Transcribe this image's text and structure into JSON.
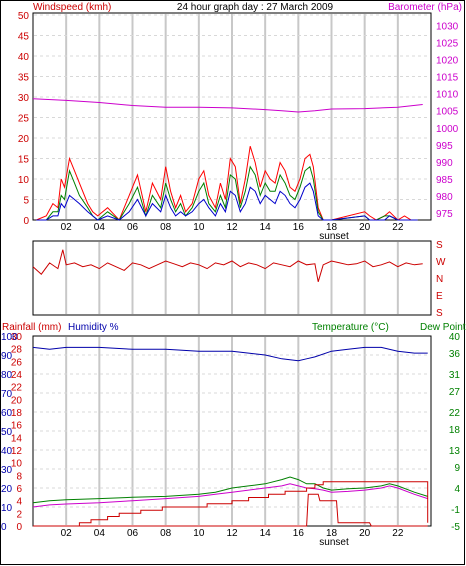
{
  "title": "24 hour graph day : 27 March 2009",
  "chart_data": [
    {
      "type": "line",
      "title": "24 hour graph day : 27 March 2009",
      "left_axis_label": "Windspeed (kmh)",
      "right_axis_label": "Barometer (hPa)",
      "left_ticks": [
        "0",
        "5",
        "10",
        "15",
        "20",
        "25",
        "30",
        "35",
        "40",
        "45",
        "50"
      ],
      "right_ticks": [
        "975",
        "980",
        "985",
        "990",
        "995",
        "1000",
        "1005",
        "1010",
        "1015",
        "1020",
        "1025",
        "1030"
      ],
      "x_ticks": [
        "02",
        "04",
        "06",
        "08",
        "10",
        "12",
        "14",
        "16",
        "18",
        "20",
        "22"
      ],
      "sunset_label": "sunset",
      "ylim_left": [
        0,
        50
      ],
      "ylim_right": [
        973,
        1033
      ],
      "xlim": [
        0,
        24
      ],
      "grid": true,
      "colors": {
        "barometer": "#cc00cc",
        "gust": "#ff0000",
        "average": "#008000",
        "speed": "#0000cc",
        "left_axis": "#cc0000",
        "right_axis": "#cc00cc"
      },
      "barometer": {
        "x": [
          0,
          2,
          4,
          6,
          8,
          10,
          12,
          14,
          15,
          16,
          17,
          18,
          20,
          22,
          23.5
        ],
        "y": [
          1008.5,
          1008,
          1007.4,
          1006.5,
          1006,
          1006,
          1005.8,
          1005.3,
          1005,
          1004.6,
          1005,
          1005.5,
          1005.6,
          1006,
          1006.8
        ]
      },
      "wind_gust": {
        "x": [
          0.2,
          0.8,
          1.2,
          1.5,
          1.7,
          1.9,
          2.2,
          2.5,
          2.8,
          3.3,
          3.6,
          3.9,
          4.5,
          5.2,
          5.8,
          6.3,
          6.8,
          7.2,
          7.7,
          8.0,
          8.3,
          8.6,
          8.9,
          9.2,
          9.6,
          10.0,
          10.3,
          10.6,
          11.0,
          11.3,
          11.6,
          11.9,
          12.2,
          12.5,
          12.8,
          13.1,
          13.4,
          13.7,
          14.0,
          14.3,
          14.6,
          14.9,
          15.2,
          15.5,
          15.8,
          16.1,
          16.4,
          16.7,
          16.9,
          17.2,
          17.5,
          18.0,
          20.0,
          20.3,
          20.7,
          21.2,
          21.5,
          22.0,
          22.4,
          22.8,
          23.2
        ],
        "y": [
          0,
          1,
          4,
          3,
          10,
          8,
          15,
          12,
          9,
          4,
          2,
          1,
          3,
          0,
          6,
          11,
          2,
          9,
          5,
          13,
          7,
          3,
          6,
          2,
          4,
          10,
          12,
          6,
          3,
          9,
          5,
          15,
          13,
          4,
          10,
          18,
          14,
          8,
          12,
          10,
          9,
          14,
          12,
          8,
          7,
          10,
          15,
          16,
          13,
          3,
          0,
          0,
          2,
          1,
          0,
          1,
          2,
          0,
          1,
          0,
          0
        ]
      },
      "wind_avg": {
        "x": [
          0.2,
          0.8,
          1.2,
          1.5,
          1.7,
          1.9,
          2.2,
          2.5,
          2.8,
          3.3,
          3.6,
          3.9,
          4.5,
          5.2,
          5.8,
          6.3,
          6.8,
          7.2,
          7.7,
          8.0,
          8.3,
          8.6,
          8.9,
          9.2,
          9.6,
          10.0,
          10.3,
          10.6,
          11.0,
          11.3,
          11.6,
          11.9,
          12.2,
          12.5,
          12.8,
          13.1,
          13.4,
          13.7,
          14.0,
          14.3,
          14.6,
          14.9,
          15.2,
          15.5,
          15.8,
          16.1,
          16.4,
          16.7,
          16.9,
          17.2,
          17.5,
          18.0,
          20.0,
          20.3,
          20.7,
          21.2,
          21.5,
          22.0,
          22.4,
          22.8,
          23.2
        ],
        "y": [
          0,
          0,
          2,
          2,
          6,
          5,
          12,
          9,
          6,
          3,
          1,
          0,
          2,
          0,
          4,
          8,
          1,
          6,
          3,
          9,
          5,
          2,
          4,
          1,
          3,
          7,
          9,
          4,
          2,
          6,
          3,
          11,
          10,
          3,
          7,
          13,
          11,
          6,
          9,
          7,
          7,
          11,
          9,
          6,
          5,
          8,
          12,
          13,
          10,
          2,
          0,
          0,
          1,
          0,
          0,
          1,
          1,
          0,
          0,
          0,
          0
        ]
      },
      "wind_speed": {
        "x": [
          0.2,
          0.8,
          1.2,
          1.5,
          1.7,
          1.9,
          2.2,
          2.5,
          2.8,
          3.3,
          3.6,
          3.9,
          4.5,
          5.2,
          5.8,
          6.3,
          6.8,
          7.2,
          7.7,
          8.0,
          8.3,
          8.6,
          8.9,
          9.2,
          9.6,
          10.0,
          10.3,
          10.6,
          11.0,
          11.3,
          11.6,
          11.9,
          12.2,
          12.5,
          12.8,
          13.1,
          13.4,
          13.7,
          14.0,
          14.3,
          14.6,
          14.9,
          15.2,
          15.5,
          15.8,
          16.1,
          16.4,
          16.7,
          16.9,
          17.2,
          17.5,
          18.0,
          20.0,
          20.3,
          20.7,
          21.2,
          21.5,
          22.0,
          22.4,
          22.8,
          23.2
        ],
        "y": [
          0,
          0,
          1,
          1,
          4,
          3,
          6,
          5,
          4,
          2,
          1,
          0,
          1,
          0,
          2,
          5,
          1,
          4,
          2,
          6,
          3,
          1,
          2,
          1,
          2,
          4,
          5,
          3,
          1,
          4,
          2,
          7,
          6,
          2,
          4,
          8,
          7,
          4,
          6,
          5,
          4,
          7,
          6,
          4,
          3,
          5,
          8,
          9,
          7,
          1,
          0,
          0,
          1,
          0,
          0,
          0,
          1,
          0,
          0,
          0,
          0
        ]
      }
    },
    {
      "type": "line",
      "right_axis_labels": [
        "S",
        "E",
        "N",
        "W",
        "S"
      ],
      "ylim": [
        0,
        360
      ],
      "xlim": [
        0,
        24
      ],
      "color": "#cc0000",
      "wind_direction": {
        "x": [
          0,
          0.5,
          1,
          1.5,
          1.8,
          2,
          2.5,
          3,
          3.5,
          4,
          4.5,
          5,
          5.5,
          6,
          6.5,
          7,
          7.5,
          8,
          8.5,
          9,
          9.5,
          10,
          10.5,
          11,
          11.5,
          12,
          12.5,
          13,
          13.5,
          14,
          14.5,
          15,
          15.5,
          16,
          16.5,
          17,
          17.2,
          17.5,
          18,
          18.5,
          19,
          19.5,
          20,
          20.5,
          21,
          21.5,
          22,
          22.5,
          23,
          23.5
        ],
        "y": [
          240,
          200,
          260,
          230,
          330,
          250,
          260,
          240,
          250,
          230,
          260,
          240,
          220,
          260,
          250,
          230,
          250,
          270,
          255,
          240,
          260,
          250,
          230,
          260,
          250,
          270,
          240,
          260,
          250,
          230,
          260,
          250,
          240,
          270,
          250,
          255,
          160,
          250,
          270,
          260,
          250,
          255,
          270,
          240,
          250,
          265,
          240,
          260,
          250,
          255
        ]
      }
    },
    {
      "type": "line",
      "left_axis_labels": [
        "Rainfall (mm)",
        "Humidity %"
      ],
      "right_axis_labels": [
        "Temperature (°C)",
        "Dew Point"
      ],
      "rain_ticks": [
        "0",
        "2",
        "4",
        "6",
        "8",
        "10",
        "12",
        "14",
        "16",
        "18",
        "20",
        "22",
        "24",
        "26",
        "28",
        "30"
      ],
      "humidity_ticks": [
        "0",
        "10",
        "20",
        "30",
        "40",
        "50",
        "60",
        "70",
        "80",
        "90",
        "100"
      ],
      "temp_ticks": [
        "-5",
        "-1",
        "4",
        "9",
        "13",
        "18",
        "22",
        "27",
        "31",
        "36",
        "40"
      ],
      "x_ticks": [
        "02",
        "04",
        "06",
        "08",
        "10",
        "12",
        "14",
        "16",
        "18",
        "20",
        "22"
      ],
      "sunset_label": "sunset",
      "ylim_rain": [
        0,
        30
      ],
      "ylim_humidity": [
        0,
        100
      ],
      "ylim_temp": [
        -5,
        40
      ],
      "xlim": [
        0,
        24
      ],
      "grid": true,
      "colors": {
        "rain_axis": "#cc0000",
        "humidity_axis": "#0000aa",
        "temp_axis": "#008000",
        "humidity": "#0000aa",
        "temperature": "#008000",
        "dew_point": "#cc00cc",
        "rainfall": "#cc0000",
        "rain_rate": "#cc0000"
      },
      "humidity": {
        "x": [
          0,
          1,
          2,
          4,
          6,
          8,
          10,
          12,
          13,
          14,
          15,
          16,
          16.5,
          17,
          18,
          19,
          20,
          21,
          22,
          23,
          23.8
        ],
        "y": [
          94,
          93,
          94,
          94,
          93,
          93,
          92,
          92,
          91,
          90,
          88,
          87,
          88,
          89,
          92,
          93,
          94,
          94,
          92,
          91,
          91
        ]
      },
      "temperature": {
        "x": [
          0,
          1,
          2,
          4,
          6,
          8,
          10,
          11,
          12,
          13,
          14,
          15,
          15.5,
          16,
          16.5,
          17,
          17.5,
          18,
          19,
          20,
          21,
          21.5,
          22,
          23,
          23.8
        ],
        "y": [
          0.5,
          1,
          1.2,
          1.5,
          1.8,
          2,
          2.5,
          3,
          4,
          4.5,
          5,
          6,
          6.6,
          6,
          5,
          5,
          4,
          3.5,
          3.8,
          4,
          4.5,
          5,
          4.5,
          3,
          2
        ]
      },
      "dew_point": {
        "x": [
          0,
          1,
          2,
          4,
          6,
          8,
          10,
          11,
          12,
          13,
          14,
          15,
          15.5,
          16,
          16.5,
          17,
          17.5,
          18,
          19,
          20,
          21,
          21.5,
          22,
          23,
          23.8
        ],
        "y": [
          -0.5,
          0,
          0.2,
          0.5,
          1,
          1.5,
          2,
          2.5,
          3,
          3.5,
          4,
          4.5,
          5,
          4.5,
          4,
          3.8,
          3.5,
          3,
          3.2,
          3.5,
          4,
          4.5,
          4,
          2.5,
          1.5
        ]
      },
      "rainfall_total": {
        "x": [
          0,
          1.5,
          2.8,
          3.5,
          4.5,
          5.2,
          6.5,
          7.8,
          10.5,
          12,
          13,
          14.2,
          15.2,
          16.5,
          17,
          17.5,
          23.5,
          23.8
        ],
        "y": [
          0,
          0,
          0.5,
          1,
          1.5,
          2,
          2.5,
          3,
          3.5,
          4,
          4.5,
          5,
          5.5,
          6,
          6.5,
          7,
          7,
          0.5
        ]
      },
      "rain_rate": {
        "x": [
          0,
          16.5,
          16.6,
          17.2,
          17.3,
          18.3,
          18.4,
          20.3,
          20.4,
          23.8
        ],
        "y": [
          0,
          0,
          5,
          5,
          4,
          4,
          0.5,
          0.5,
          0,
          0
        ]
      }
    }
  ]
}
